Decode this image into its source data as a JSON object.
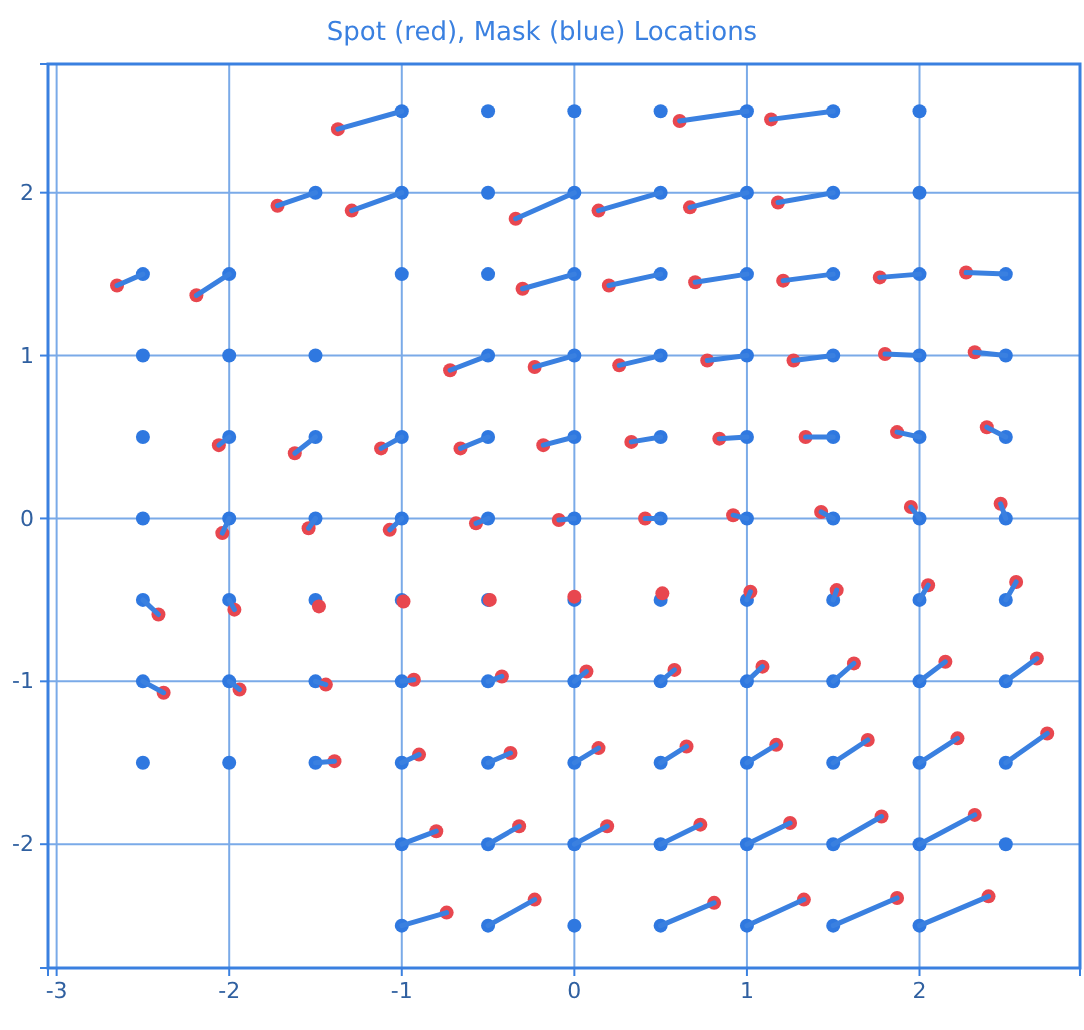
{
  "chart_data": {
    "type": "scatter",
    "title": "Spot (red), Mask (blue) Locations",
    "xlim": [
      -3.05,
      2.93
    ],
    "ylim": [
      -2.76,
      2.79
    ],
    "xticks": [
      -3,
      -2,
      -1,
      0,
      1,
      2
    ],
    "yticks": [
      -2,
      -1,
      0,
      1,
      2
    ],
    "grid": true,
    "marker": "circle",
    "line_style": "solid",
    "series": [
      {
        "type": "line",
        "marker": "none",
        "color": "#3a80e0",
        "x": [
          -1,
          -1.37
        ],
        "values": [
          2.5,
          2.39
        ]
      },
      {
        "type": "line",
        "marker": "none",
        "color": "#3a80e0",
        "x": [
          1,
          0.61
        ],
        "values": [
          2.5,
          2.44
        ]
      },
      {
        "type": "line",
        "marker": "none",
        "color": "#3a80e0",
        "x": [
          1.5,
          1.14
        ],
        "values": [
          2.5,
          2.45
        ]
      },
      {
        "type": "line",
        "marker": "none",
        "color": "#3a80e0",
        "x": [
          -1.5,
          -1.72
        ],
        "values": [
          2,
          1.92
        ]
      },
      {
        "type": "line",
        "marker": "none",
        "color": "#3a80e0",
        "x": [
          -1,
          -1.29
        ],
        "values": [
          2,
          1.89
        ]
      },
      {
        "type": "line",
        "marker": "none",
        "color": "#3a80e0",
        "x": [
          0,
          -0.34
        ],
        "values": [
          2,
          1.84
        ]
      },
      {
        "type": "line",
        "marker": "none",
        "color": "#3a80e0",
        "x": [
          0.5,
          0.14
        ],
        "values": [
          2,
          1.89
        ]
      },
      {
        "type": "line",
        "marker": "none",
        "color": "#3a80e0",
        "x": [
          1,
          0.67
        ],
        "values": [
          2,
          1.91
        ]
      },
      {
        "type": "line",
        "marker": "none",
        "color": "#3a80e0",
        "x": [
          1.5,
          1.18
        ],
        "values": [
          2,
          1.94
        ]
      },
      {
        "type": "line",
        "marker": "none",
        "color": "#3a80e0",
        "x": [
          -2.5,
          -2.65
        ],
        "values": [
          1.5,
          1.43
        ]
      },
      {
        "type": "line",
        "marker": "none",
        "color": "#3a80e0",
        "x": [
          -2,
          -2.19
        ],
        "values": [
          1.5,
          1.37
        ]
      },
      {
        "type": "line",
        "marker": "none",
        "color": "#3a80e0",
        "x": [
          0,
          -0.3
        ],
        "values": [
          1.5,
          1.41
        ]
      },
      {
        "type": "line",
        "marker": "none",
        "color": "#3a80e0",
        "x": [
          0.5,
          0.2
        ],
        "values": [
          1.5,
          1.43
        ]
      },
      {
        "type": "line",
        "marker": "none",
        "color": "#3a80e0",
        "x": [
          1,
          0.7
        ],
        "values": [
          1.5,
          1.45
        ]
      },
      {
        "type": "line",
        "marker": "none",
        "color": "#3a80e0",
        "x": [
          1.5,
          1.21
        ],
        "values": [
          1.5,
          1.46
        ]
      },
      {
        "type": "line",
        "marker": "none",
        "color": "#3a80e0",
        "x": [
          2,
          1.77
        ],
        "values": [
          1.5,
          1.48
        ]
      },
      {
        "type": "line",
        "marker": "none",
        "color": "#3a80e0",
        "x": [
          2.5,
          2.27
        ],
        "values": [
          1.5,
          1.51
        ]
      },
      {
        "type": "line",
        "marker": "none",
        "color": "#3a80e0",
        "x": [
          -0.5,
          -0.72
        ],
        "values": [
          1,
          0.91
        ]
      },
      {
        "type": "line",
        "marker": "none",
        "color": "#3a80e0",
        "x": [
          0,
          -0.23
        ],
        "values": [
          1,
          0.93
        ]
      },
      {
        "type": "line",
        "marker": "none",
        "color": "#3a80e0",
        "x": [
          0.5,
          0.26
        ],
        "values": [
          1,
          0.94
        ]
      },
      {
        "type": "line",
        "marker": "none",
        "color": "#3a80e0",
        "x": [
          1,
          0.77
        ],
        "values": [
          1,
          0.97
        ]
      },
      {
        "type": "line",
        "marker": "none",
        "color": "#3a80e0",
        "x": [
          1.5,
          1.27
        ],
        "values": [
          1,
          0.97
        ]
      },
      {
        "type": "line",
        "marker": "none",
        "color": "#3a80e0",
        "x": [
          2,
          1.8
        ],
        "values": [
          1,
          1.01
        ]
      },
      {
        "type": "line",
        "marker": "none",
        "color": "#3a80e0",
        "x": [
          2.5,
          2.32
        ],
        "values": [
          1,
          1.02
        ]
      },
      {
        "type": "line",
        "marker": "none",
        "color": "#3a80e0",
        "x": [
          -2,
          -2.06
        ],
        "values": [
          0.5,
          0.45
        ]
      },
      {
        "type": "line",
        "marker": "none",
        "color": "#3a80e0",
        "x": [
          -1.5,
          -1.62
        ],
        "values": [
          0.5,
          0.4
        ]
      },
      {
        "type": "line",
        "marker": "none",
        "color": "#3a80e0",
        "x": [
          -1,
          -1.12
        ],
        "values": [
          0.5,
          0.43
        ]
      },
      {
        "type": "line",
        "marker": "none",
        "color": "#3a80e0",
        "x": [
          -0.5,
          -0.66
        ],
        "values": [
          0.5,
          0.43
        ]
      },
      {
        "type": "line",
        "marker": "none",
        "color": "#3a80e0",
        "x": [
          0,
          -0.18
        ],
        "values": [
          0.5,
          0.45
        ]
      },
      {
        "type": "line",
        "marker": "none",
        "color": "#3a80e0",
        "x": [
          0.5,
          0.33
        ],
        "values": [
          0.5,
          0.47
        ]
      },
      {
        "type": "line",
        "marker": "none",
        "color": "#3a80e0",
        "x": [
          1,
          0.84
        ],
        "values": [
          0.5,
          0.49
        ]
      },
      {
        "type": "line",
        "marker": "none",
        "color": "#3a80e0",
        "x": [
          1.5,
          1.34
        ],
        "values": [
          0.5,
          0.5
        ]
      },
      {
        "type": "line",
        "marker": "none",
        "color": "#3a80e0",
        "x": [
          2,
          1.87
        ],
        "values": [
          0.5,
          0.53
        ]
      },
      {
        "type": "line",
        "marker": "none",
        "color": "#3a80e0",
        "x": [
          2.5,
          2.39
        ],
        "values": [
          0.5,
          0.56
        ]
      },
      {
        "type": "line",
        "marker": "none",
        "color": "#3a80e0",
        "x": [
          -2,
          -2.04
        ],
        "values": [
          0,
          -0.09
        ]
      },
      {
        "type": "line",
        "marker": "none",
        "color": "#3a80e0",
        "x": [
          -1.5,
          -1.54
        ],
        "values": [
          0,
          -0.06
        ]
      },
      {
        "type": "line",
        "marker": "none",
        "color": "#3a80e0",
        "x": [
          -1,
          -1.07
        ],
        "values": [
          0,
          -0.07
        ]
      },
      {
        "type": "line",
        "marker": "none",
        "color": "#3a80e0",
        "x": [
          -0.5,
          -0.57
        ],
        "values": [
          0,
          -0.03
        ]
      },
      {
        "type": "line",
        "marker": "none",
        "color": "#3a80e0",
        "x": [
          0,
          -0.09
        ],
        "values": [
          0,
          -0.01
        ]
      },
      {
        "type": "line",
        "marker": "none",
        "color": "#3a80e0",
        "x": [
          0.5,
          0.41
        ],
        "values": [
          0,
          0
        ]
      },
      {
        "type": "line",
        "marker": "none",
        "color": "#3a80e0",
        "x": [
          1,
          0.92
        ],
        "values": [
          0,
          0.02
        ]
      },
      {
        "type": "line",
        "marker": "none",
        "color": "#3a80e0",
        "x": [
          1.5,
          1.43
        ],
        "values": [
          0,
          0.04
        ]
      },
      {
        "type": "line",
        "marker": "none",
        "color": "#3a80e0",
        "x": [
          2,
          1.95
        ],
        "values": [
          0,
          0.07
        ]
      },
      {
        "type": "line",
        "marker": "none",
        "color": "#3a80e0",
        "x": [
          2.5,
          2.47
        ],
        "values": [
          0,
          0.09
        ]
      },
      {
        "type": "line",
        "marker": "none",
        "color": "#3a80e0",
        "x": [
          -2.5,
          -2.41
        ],
        "values": [
          -0.5,
          -0.59
        ]
      },
      {
        "type": "line",
        "marker": "none",
        "color": "#3a80e0",
        "x": [
          -2,
          -1.97
        ],
        "values": [
          -0.5,
          -0.56
        ]
      },
      {
        "type": "line",
        "marker": "none",
        "color": "#3a80e0",
        "x": [
          1,
          1.02
        ],
        "values": [
          -0.5,
          -0.45
        ]
      },
      {
        "type": "line",
        "marker": "none",
        "color": "#3a80e0",
        "x": [
          1.5,
          1.52
        ],
        "values": [
          -0.5,
          -0.44
        ]
      },
      {
        "type": "line",
        "marker": "none",
        "color": "#3a80e0",
        "x": [
          2,
          2.05
        ],
        "values": [
          -0.5,
          -0.41
        ]
      },
      {
        "type": "line",
        "marker": "none",
        "color": "#3a80e0",
        "x": [
          2.5,
          2.56
        ],
        "values": [
          -0.5,
          -0.39
        ]
      },
      {
        "type": "line",
        "marker": "none",
        "color": "#3a80e0",
        "x": [
          -2.5,
          -2.38
        ],
        "values": [
          -1,
          -1.07
        ]
      },
      {
        "type": "line",
        "marker": "none",
        "color": "#3a80e0",
        "x": [
          -2,
          -1.94
        ],
        "values": [
          -1,
          -1.05
        ]
      },
      {
        "type": "line",
        "marker": "none",
        "color": "#3a80e0",
        "x": [
          -1.5,
          -1.44
        ],
        "values": [
          -1,
          -1.02
        ]
      },
      {
        "type": "line",
        "marker": "none",
        "color": "#3a80e0",
        "x": [
          -1,
          -0.93
        ],
        "values": [
          -1,
          -0.99
        ]
      },
      {
        "type": "line",
        "marker": "none",
        "color": "#3a80e0",
        "x": [
          -0.5,
          -0.42
        ],
        "values": [
          -1,
          -0.97
        ]
      },
      {
        "type": "line",
        "marker": "none",
        "color": "#3a80e0",
        "x": [
          0,
          0.07
        ],
        "values": [
          -1,
          -0.94
        ]
      },
      {
        "type": "line",
        "marker": "none",
        "color": "#3a80e0",
        "x": [
          0.5,
          0.58
        ],
        "values": [
          -1,
          -0.93
        ]
      },
      {
        "type": "line",
        "marker": "none",
        "color": "#3a80e0",
        "x": [
          1,
          1.09
        ],
        "values": [
          -1,
          -0.91
        ]
      },
      {
        "type": "line",
        "marker": "none",
        "color": "#3a80e0",
        "x": [
          1.5,
          1.62
        ],
        "values": [
          -1,
          -0.89
        ]
      },
      {
        "type": "line",
        "marker": "none",
        "color": "#3a80e0",
        "x": [
          2,
          2.15
        ],
        "values": [
          -1,
          -0.88
        ]
      },
      {
        "type": "line",
        "marker": "none",
        "color": "#3a80e0",
        "x": [
          2.5,
          2.68
        ],
        "values": [
          -1,
          -0.86
        ]
      },
      {
        "type": "line",
        "marker": "none",
        "color": "#3a80e0",
        "x": [
          -1.5,
          -1.39
        ],
        "values": [
          -1.5,
          -1.49
        ]
      },
      {
        "type": "line",
        "marker": "none",
        "color": "#3a80e0",
        "x": [
          -1,
          -0.9
        ],
        "values": [
          -1.5,
          -1.45
        ]
      },
      {
        "type": "line",
        "marker": "none",
        "color": "#3a80e0",
        "x": [
          -0.5,
          -0.37
        ],
        "values": [
          -1.5,
          -1.44
        ]
      },
      {
        "type": "line",
        "marker": "none",
        "color": "#3a80e0",
        "x": [
          0,
          0.14
        ],
        "values": [
          -1.5,
          -1.41
        ]
      },
      {
        "type": "line",
        "marker": "none",
        "color": "#3a80e0",
        "x": [
          0.5,
          0.65
        ],
        "values": [
          -1.5,
          -1.4
        ]
      },
      {
        "type": "line",
        "marker": "none",
        "color": "#3a80e0",
        "x": [
          1,
          1.17
        ],
        "values": [
          -1.5,
          -1.39
        ]
      },
      {
        "type": "line",
        "marker": "none",
        "color": "#3a80e0",
        "x": [
          1.5,
          1.7
        ],
        "values": [
          -1.5,
          -1.36
        ]
      },
      {
        "type": "line",
        "marker": "none",
        "color": "#3a80e0",
        "x": [
          2,
          2.22
        ],
        "values": [
          -1.5,
          -1.35
        ]
      },
      {
        "type": "line",
        "marker": "none",
        "color": "#3a80e0",
        "x": [
          2.5,
          2.74
        ],
        "values": [
          -1.5,
          -1.32
        ]
      },
      {
        "type": "line",
        "marker": "none",
        "color": "#3a80e0",
        "x": [
          -1,
          -0.8
        ],
        "values": [
          -2,
          -1.92
        ]
      },
      {
        "type": "line",
        "marker": "none",
        "color": "#3a80e0",
        "x": [
          -0.5,
          -0.32
        ],
        "values": [
          -2,
          -1.89
        ]
      },
      {
        "type": "line",
        "marker": "none",
        "color": "#3a80e0",
        "x": [
          0,
          0.19
        ],
        "values": [
          -2,
          -1.89
        ]
      },
      {
        "type": "line",
        "marker": "none",
        "color": "#3a80e0",
        "x": [
          0.5,
          0.73
        ],
        "values": [
          -2,
          -1.88
        ]
      },
      {
        "type": "line",
        "marker": "none",
        "color": "#3a80e0",
        "x": [
          1,
          1.25
        ],
        "values": [
          -2,
          -1.87
        ]
      },
      {
        "type": "line",
        "marker": "none",
        "color": "#3a80e0",
        "x": [
          1.5,
          1.78
        ],
        "values": [
          -2,
          -1.83
        ]
      },
      {
        "type": "line",
        "marker": "none",
        "color": "#3a80e0",
        "x": [
          2,
          2.32
        ],
        "values": [
          -2,
          -1.82
        ]
      },
      {
        "type": "line",
        "marker": "none",
        "color": "#3a80e0",
        "x": [
          -1,
          -0.74
        ],
        "values": [
          -2.5,
          -2.42
        ]
      },
      {
        "type": "line",
        "marker": "none",
        "color": "#3a80e0",
        "x": [
          -0.5,
          -0.23
        ],
        "values": [
          -2.5,
          -2.34
        ]
      },
      {
        "type": "line",
        "marker": "none",
        "color": "#3a80e0",
        "x": [
          0.5,
          0.81
        ],
        "values": [
          -2.5,
          -2.36
        ]
      },
      {
        "type": "line",
        "marker": "none",
        "color": "#3a80e0",
        "x": [
          1,
          1.33
        ],
        "values": [
          -2.5,
          -2.34
        ]
      },
      {
        "type": "line",
        "marker": "none",
        "color": "#3a80e0",
        "x": [
          1.5,
          1.87
        ],
        "values": [
          -2.5,
          -2.33
        ]
      },
      {
        "type": "line",
        "marker": "none",
        "color": "#3a80e0",
        "x": [
          2,
          2.4
        ],
        "values": [
          -2.5,
          -2.32
        ]
      },
      {
        "color": "#2f78e0",
        "x": [
          -1,
          -0.5,
          0,
          0.5,
          1,
          1.5,
          2,
          -1.5,
          -1,
          -0.5,
          0,
          0.5,
          1,
          1.5,
          2,
          -2.5,
          -2,
          -1,
          -0.5,
          0,
          0.5,
          1,
          1.5,
          2,
          2.5,
          -2.5,
          -2,
          -1.5,
          -0.5,
          0,
          0.5,
          1,
          1.5,
          2,
          2.5,
          -2.5,
          -2,
          -1.5,
          -1,
          -0.5,
          0,
          0.5,
          1,
          1.5,
          2,
          2.5,
          -2.5,
          -2,
          -1.5,
          -1,
          -0.5,
          0,
          0.5,
          1,
          1.5,
          2,
          2.5,
          -2.5,
          -2,
          -1.5,
          -1,
          -0.5,
          0,
          0.5,
          1,
          1.5,
          2,
          2.5,
          -2.5,
          -2,
          -1.5,
          -1,
          -0.5,
          0,
          0.5,
          1,
          1.5,
          2,
          2.5,
          -2.5,
          -2,
          -1.5,
          -1,
          -0.5,
          0,
          0.5,
          1,
          1.5,
          2,
          2.5,
          -1,
          -0.5,
          0,
          0.5,
          1,
          1.5,
          2,
          2.5,
          -1,
          -0.5,
          0,
          0.5,
          1,
          1.5,
          2
        ],
        "values": [
          2.5,
          2.5,
          2.5,
          2.5,
          2.5,
          2.5,
          2.5,
          2,
          2,
          2,
          2,
          2,
          2,
          2,
          2,
          1.5,
          1.5,
          1.5,
          1.5,
          1.5,
          1.5,
          1.5,
          1.5,
          1.5,
          1.5,
          1,
          1,
          1,
          1,
          1,
          1,
          1,
          1,
          1,
          1,
          0.5,
          0.5,
          0.5,
          0.5,
          0.5,
          0.5,
          0.5,
          0.5,
          0.5,
          0.5,
          0.5,
          0,
          0,
          0,
          0,
          0,
          0,
          0,
          0,
          0,
          0,
          0,
          -0.5,
          -0.5,
          -0.5,
          -0.5,
          -0.5,
          -0.5,
          -0.5,
          -0.5,
          -0.5,
          -0.5,
          -0.5,
          -1,
          -1,
          -1,
          -1,
          -1,
          -1,
          -1,
          -1,
          -1,
          -1,
          -1,
          -1.5,
          -1.5,
          -1.5,
          -1.5,
          -1.5,
          -1.5,
          -1.5,
          -1.5,
          -1.5,
          -1.5,
          -1.5,
          -2,
          -2,
          -2,
          -2,
          -2,
          -2,
          -2,
          -2,
          -2.5,
          -2.5,
          -2.5,
          -2.5,
          -2.5,
          -2.5,
          -2.5
        ]
      },
      {
        "color": "#e8474f",
        "x": [
          -1.37,
          0.61,
          1.14,
          -1.72,
          -1.29,
          -0.34,
          0.14,
          0.67,
          1.18,
          -2.65,
          -2.19,
          -0.3,
          0.2,
          0.7,
          1.21,
          1.77,
          2.27,
          -0.72,
          -0.23,
          0.26,
          0.77,
          1.27,
          1.8,
          2.32,
          -2.06,
          -1.62,
          -1.12,
          -0.66,
          -0.18,
          0.33,
          0.84,
          1.34,
          1.87,
          2.39,
          -2.04,
          -1.54,
          -1.07,
          -0.57,
          -0.09,
          0.41,
          0.92,
          1.43,
          1.95,
          2.47,
          -2.41,
          -1.97,
          -1.48,
          -0.99,
          -0.49,
          0,
          0.51,
          1.02,
          1.52,
          2.05,
          2.56,
          -2.38,
          -1.94,
          -1.44,
          -0.93,
          -0.42,
          0.07,
          0.58,
          1.09,
          1.62,
          2.15,
          2.68,
          -1.39,
          -0.9,
          -0.37,
          0.14,
          0.65,
          1.17,
          1.7,
          2.22,
          2.74,
          -0.8,
          -0.32,
          0.19,
          0.73,
          1.25,
          1.78,
          2.32,
          -0.74,
          -0.23,
          0.81,
          1.33,
          1.87,
          2.4
        ],
        "values": [
          2.39,
          2.44,
          2.45,
          1.92,
          1.89,
          1.84,
          1.89,
          1.91,
          1.94,
          1.43,
          1.37,
          1.41,
          1.43,
          1.45,
          1.46,
          1.48,
          1.51,
          0.91,
          0.93,
          0.94,
          0.97,
          0.97,
          1.01,
          1.02,
          0.45,
          0.4,
          0.43,
          0.43,
          0.45,
          0.47,
          0.49,
          0.5,
          0.53,
          0.56,
          -0.09,
          -0.06,
          -0.07,
          -0.03,
          -0.01,
          0,
          0.02,
          0.04,
          0.07,
          0.09,
          -0.59,
          -0.56,
          -0.54,
          -0.51,
          -0.5,
          -0.48,
          -0.46,
          -0.45,
          -0.44,
          -0.41,
          -0.39,
          -1.07,
          -1.05,
          -1.02,
          -0.99,
          -0.97,
          -0.94,
          -0.93,
          -0.91,
          -0.89,
          -0.88,
          -0.86,
          -1.49,
          -1.45,
          -1.44,
          -1.41,
          -1.4,
          -1.39,
          -1.36,
          -1.35,
          -1.32,
          -1.92,
          -1.89,
          -1.89,
          -1.88,
          -1.87,
          -1.83,
          -1.82,
          -2.42,
          -2.34,
          -2.36,
          -2.34,
          -2.33,
          -2.32
        ]
      }
    ]
  }
}
